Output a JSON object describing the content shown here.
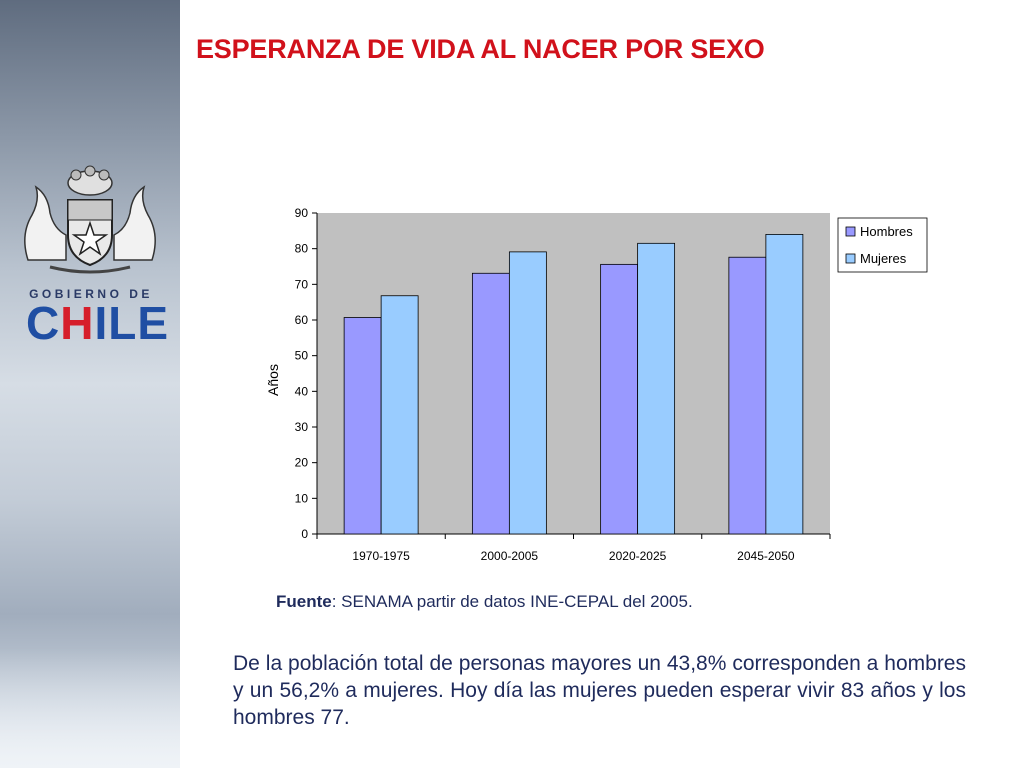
{
  "slide": {
    "title": "ESPERANZA DE VIDA AL NACER POR SEXO",
    "logo_line1": "GOBIERNO DE",
    "logo_line2_c": "C",
    "logo_line2_h": "H",
    "logo_line2_rest": "ILE",
    "source_label": "Fuente",
    "source_text": ": SENAMA partir de datos INE-CEPAL del 2005.",
    "body": "De la población total de personas mayores un 43,8% corresponden a hombres y un 56,2% a mujeres. Hoy día las mujeres pueden esperar vivir 83 años y los hombres 77."
  },
  "chart_data": {
    "type": "bar",
    "categories": [
      "1970-1975",
      "2000-2005",
      "2020-2025",
      "2045-2050"
    ],
    "series": [
      {
        "name": "Hombres",
        "values": [
          60.7,
          73.1,
          75.6,
          77.6
        ],
        "color": "#9999ff"
      },
      {
        "name": "Mujeres",
        "values": [
          66.8,
          79.1,
          81.5,
          84.0
        ],
        "color": "#99ccff"
      }
    ],
    "title": "",
    "xlabel": "",
    "ylabel": "Años",
    "ylim": [
      0,
      90
    ],
    "yticks": [
      0,
      10,
      20,
      30,
      40,
      50,
      60,
      70,
      80,
      90
    ],
    "grid": false,
    "plot_background": "#c0c0c0",
    "legend": "right"
  }
}
